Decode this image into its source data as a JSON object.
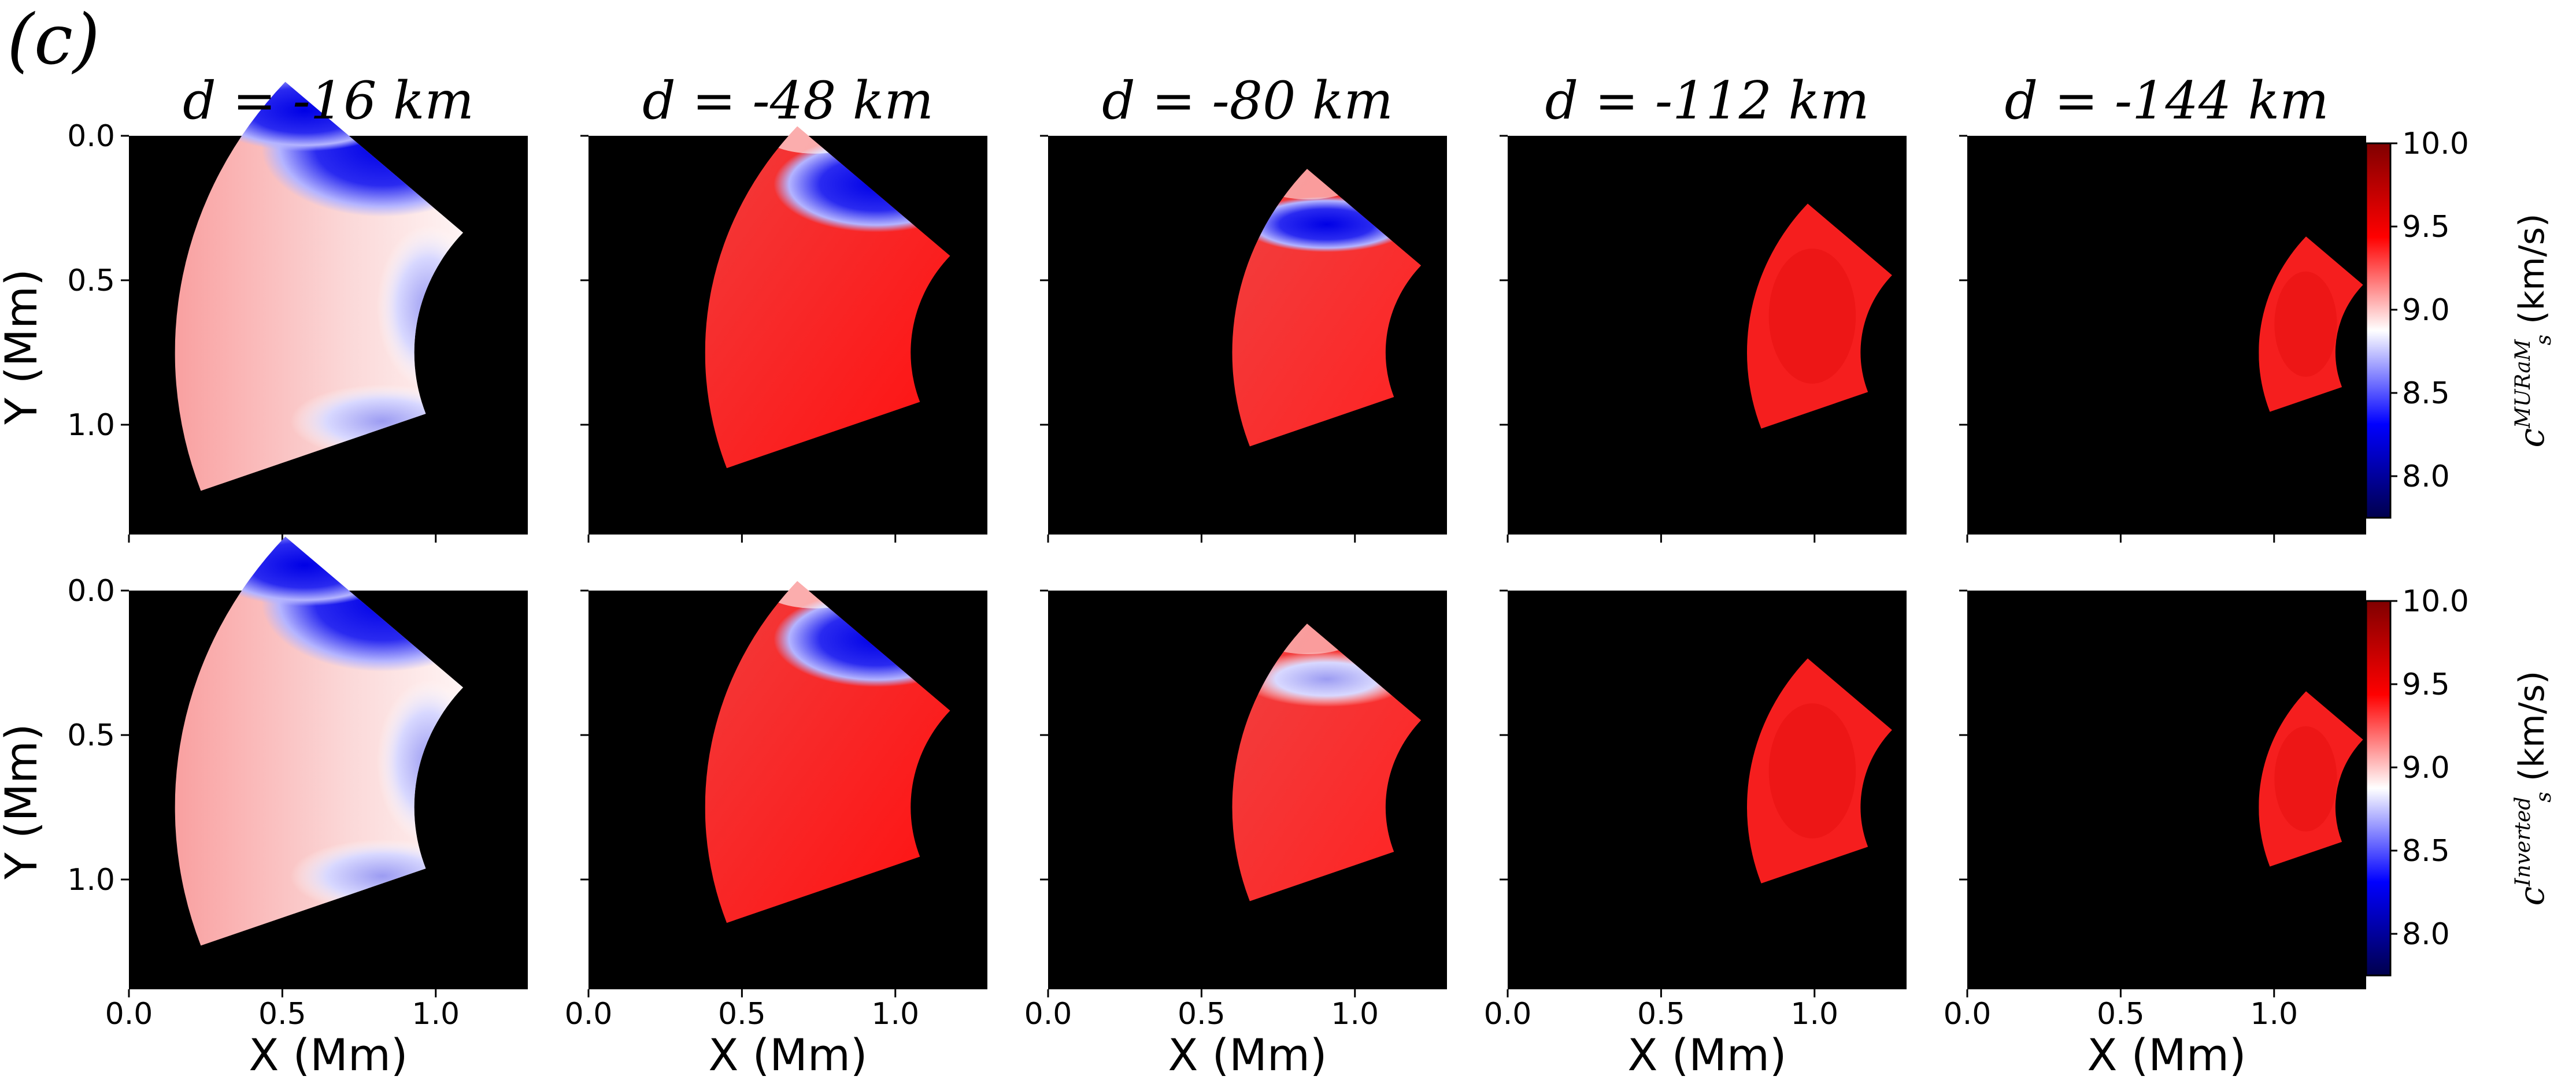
{
  "figure_label": "(c)",
  "chart_data": [
    {
      "type": "heatmap",
      "row_label": "MURaM",
      "title": "d = -16 km",
      "xlabel": "",
      "ylabel": "Y (Mm)",
      "xlim": [
        0.0,
        1.3
      ],
      "ylim": [
        1.38,
        0.0
      ],
      "xticks": [
        "0.0",
        "0.5",
        "1.0"
      ],
      "yticks": [
        "0.0",
        "0.5",
        "1.0"
      ],
      "region": {
        "x_inner": 0.15,
        "x_outer": 0.85,
        "y_top": 0.05,
        "y_bottom": 1.38,
        "description_values_kms": {
          "upper_right": 8.0,
          "mid_left": 9.3,
          "lower_mid": 8.6
        }
      }
    },
    {
      "type": "heatmap",
      "row_label": "MURaM",
      "title": "d = -48 km",
      "xlabel": "",
      "ylabel": "",
      "xlim": [
        0.0,
        1.3
      ],
      "ylim": [
        1.38,
        0.0
      ],
      "region": {
        "x_inner": 0.36,
        "x_outer": 0.93,
        "y_top": 0.15,
        "y_bottom": 1.27
      }
    },
    {
      "type": "heatmap",
      "row_label": "MURaM",
      "title": "d = -80 km",
      "xlabel": "",
      "ylabel": "",
      "xlim": [
        0.0,
        1.3
      ],
      "ylim": [
        1.38,
        0.0
      ],
      "region": {
        "x_inner": 0.54,
        "x_outer": 1.0,
        "y_top": 0.27,
        "y_bottom": 1.15
      }
    },
    {
      "type": "heatmap",
      "row_label": "MURaM",
      "title": "d = -112 km",
      "xlabel": "",
      "ylabel": "",
      "xlim": [
        0.0,
        1.3
      ],
      "ylim": [
        1.38,
        0.0
      ],
      "region": {
        "x_inner": 0.72,
        "x_outer": 1.07,
        "y_top": 0.37,
        "y_bottom": 1.04
      }
    },
    {
      "type": "heatmap",
      "row_label": "MURaM",
      "title": "d = -144 km",
      "xlabel": "",
      "ylabel": "",
      "xlim": [
        0.0,
        1.3
      ],
      "ylim": [
        1.38,
        0.0
      ],
      "region": {
        "x_inner": 0.9,
        "x_outer": 1.13,
        "y_top": 0.5,
        "y_bottom": 0.92
      }
    },
    {
      "type": "heatmap",
      "row_label": "Inverted",
      "title": "",
      "xlabel": "X (Mm)",
      "ylabel": "Y (Mm)",
      "xlim": [
        0.0,
        1.3
      ],
      "ylim": [
        1.38,
        0.0
      ],
      "xticks": [
        "0.0",
        "0.5",
        "1.0"
      ],
      "yticks": [
        "0.0",
        "0.5",
        "1.0"
      ]
    },
    {
      "type": "heatmap",
      "row_label": "Inverted",
      "title": "",
      "xlabel": "X (Mm)",
      "xlim": [
        0.0,
        1.3
      ]
    },
    {
      "type": "heatmap",
      "row_label": "Inverted",
      "title": "",
      "xlabel": "X (Mm)",
      "xlim": [
        0.0,
        1.3
      ]
    },
    {
      "type": "heatmap",
      "row_label": "Inverted",
      "title": "",
      "xlabel": "X (Mm)",
      "xlim": [
        0.0,
        1.3
      ]
    },
    {
      "type": "heatmap",
      "row_label": "Inverted",
      "title": "",
      "xlabel": "X (Mm)",
      "xlim": [
        0.0,
        1.3
      ]
    }
  ],
  "titles": [
    "d = -16 km",
    "d = -48 km",
    "d = -80 km",
    "d = -112 km",
    "d = -144 km"
  ],
  "axis": {
    "ylabel": "Y (Mm)",
    "xlabel": "X (Mm)",
    "xticks": [
      "0.0",
      "0.5",
      "1.0"
    ],
    "yticks": [
      "0.0",
      "0.5",
      "1.0"
    ]
  },
  "colorbars": [
    {
      "label_main": "c",
      "label_sub": "s",
      "label_sup": "MURaM",
      "label_unit": "(km/s)",
      "ticks": [
        "10.0",
        "9.5",
        "9.0",
        "8.5",
        "8.0"
      ],
      "range": [
        7.75,
        10.0
      ],
      "cmap": "seismic"
    },
    {
      "label_main": "c",
      "label_sub": "s",
      "label_sup": "Inverted",
      "label_unit": "(km/s)",
      "ticks": [
        "10.0",
        "9.5",
        "9.0",
        "8.5",
        "8.0"
      ],
      "range": [
        7.75,
        10.0
      ],
      "cmap": "seismic"
    }
  ],
  "colors": {
    "background": "#000000",
    "high": "#ff0000",
    "mid": "#ffffff",
    "low": "#0000ff",
    "top": "#800000",
    "bottom": "#00004c"
  }
}
